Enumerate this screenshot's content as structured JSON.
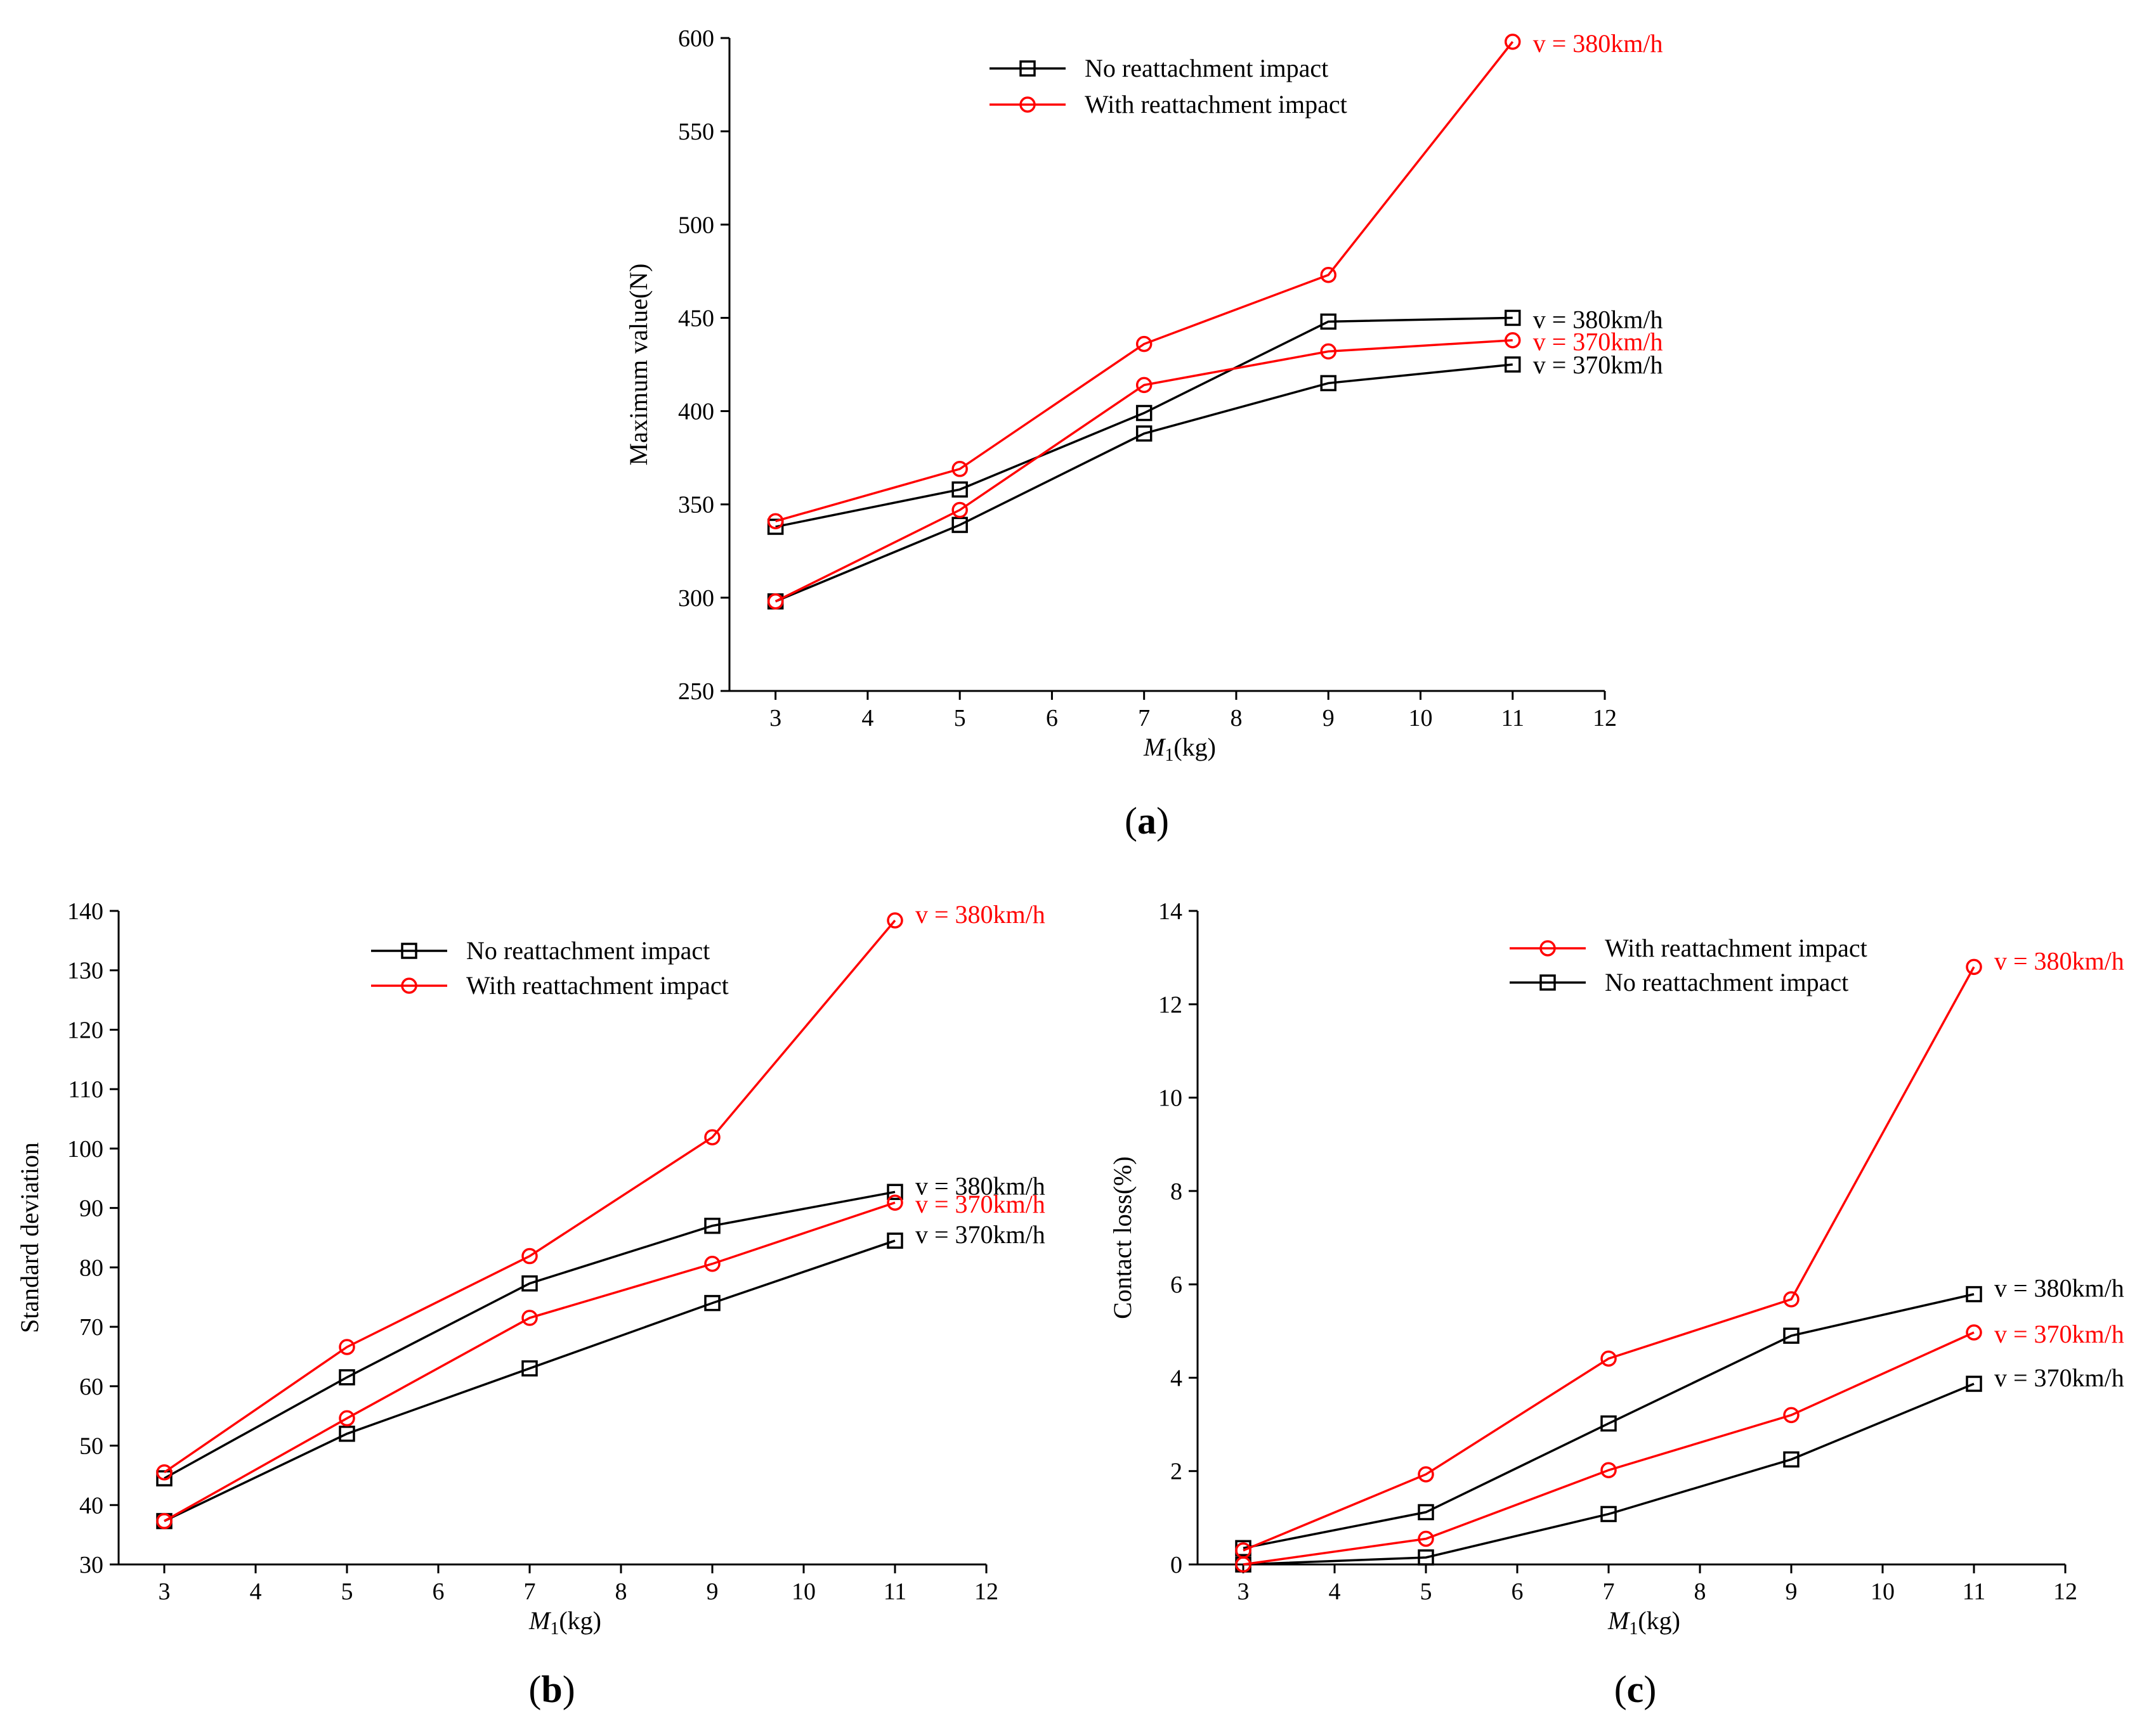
{
  "colors": {
    "black": "#000000",
    "red": "#ff0000"
  },
  "chart_data": [
    {
      "id": "a",
      "type": "line",
      "caption_letter": "a",
      "xlabel_main": "M",
      "xlabel_sub": "1",
      "xlabel_unit": "(kg)",
      "ylabel": "Maximum value(N)",
      "xlim": [
        2.5,
        12
      ],
      "ylim": [
        250,
        600
      ],
      "xticks": [
        3,
        4,
        5,
        6,
        7,
        8,
        9,
        10,
        11,
        12
      ],
      "yticks": [
        250,
        300,
        350,
        400,
        450,
        500,
        550,
        600
      ],
      "x": [
        3,
        5,
        7,
        9,
        11
      ],
      "legend": [
        {
          "label": "No reattachment impact",
          "marker": "square",
          "color": "#000000"
        },
        {
          "label": "With reattachment impact",
          "marker": "circle",
          "color": "#ff0000"
        }
      ],
      "series": [
        {
          "name": "No reattachment impact, v = 380km/h",
          "marker": "square",
          "color": "#000000",
          "values": [
            338,
            358,
            399,
            448,
            450
          ],
          "end_label": "v = 380km/h"
        },
        {
          "name": "No reattachment impact, v = 370km/h",
          "marker": "square",
          "color": "#000000",
          "values": [
            298,
            339,
            388,
            415,
            425
          ],
          "end_label": "v = 370km/h"
        },
        {
          "name": "With reattachment impact, v = 380km/h",
          "marker": "circle",
          "color": "#ff0000",
          "values": [
            341,
            369,
            436,
            473,
            598
          ],
          "end_label": "v = 380km/h"
        },
        {
          "name": "With reattachment impact, v = 370km/h",
          "marker": "circle",
          "color": "#ff0000",
          "values": [
            298,
            347,
            414,
            432,
            438
          ],
          "end_label": "v = 370km/h"
        }
      ]
    },
    {
      "id": "b",
      "type": "line",
      "caption_letter": "b",
      "xlabel_main": "M",
      "xlabel_sub": "1",
      "xlabel_unit": "(kg)",
      "ylabel": "Standard deviation",
      "xlim": [
        2.5,
        12
      ],
      "ylim": [
        30,
        140
      ],
      "xticks": [
        3,
        4,
        5,
        6,
        7,
        8,
        9,
        10,
        11,
        12
      ],
      "yticks": [
        30,
        40,
        50,
        60,
        70,
        80,
        90,
        100,
        110,
        120,
        130,
        140
      ],
      "x": [
        3,
        5,
        7,
        9,
        11
      ],
      "legend": [
        {
          "label": "No reattachment impact",
          "marker": "square",
          "color": "#000000"
        },
        {
          "label": "With reattachment impact",
          "marker": "circle",
          "color": "#ff0000"
        }
      ],
      "series": [
        {
          "name": "No reattachment impact, v = 380km/h",
          "marker": "square",
          "color": "#000000",
          "values": [
            44.5,
            61.5,
            77.3,
            87,
            92.7
          ],
          "end_label": "v = 380km/h"
        },
        {
          "name": "No reattachment impact, v = 370km/h",
          "marker": "square",
          "color": "#000000",
          "values": [
            37.3,
            52,
            63,
            74,
            84.5
          ],
          "end_label": "v = 370km/h"
        },
        {
          "name": "With reattachment impact, v = 380km/h",
          "marker": "circle",
          "color": "#ff0000",
          "values": [
            45.5,
            66.6,
            81.9,
            101.9,
            138.4
          ],
          "end_label": "v = 380km/h"
        },
        {
          "name": "With reattachment impact, v = 370km/h",
          "marker": "circle",
          "color": "#ff0000",
          "values": [
            37.3,
            54.6,
            71.5,
            80.6,
            90.9
          ],
          "end_label": "v = 370km/h"
        }
      ]
    },
    {
      "id": "c",
      "type": "line",
      "caption_letter": "c",
      "xlabel_main": "M",
      "xlabel_sub": "1",
      "xlabel_unit": "(kg)",
      "ylabel": "Contact loss(%)",
      "xlim": [
        2.5,
        12
      ],
      "ylim": [
        0,
        14
      ],
      "xticks": [
        3,
        4,
        5,
        6,
        7,
        8,
        9,
        10,
        11,
        12
      ],
      "yticks": [
        0,
        2,
        4,
        6,
        8,
        10,
        12,
        14
      ],
      "x": [
        3,
        5,
        7,
        9,
        11
      ],
      "legend": [
        {
          "label": "With reattachment impact",
          "marker": "circle",
          "color": "#ff0000"
        },
        {
          "label": "No reattachment impact",
          "marker": "square",
          "color": "#000000"
        }
      ],
      "series": [
        {
          "name": "No reattachment impact, v = 380km/h",
          "marker": "square",
          "color": "#000000",
          "values": [
            0.35,
            1.12,
            3.02,
            4.9,
            5.79
          ],
          "end_label": "v = 380km/h"
        },
        {
          "name": "No reattachment impact, v = 370km/h",
          "marker": "square",
          "color": "#000000",
          "values": [
            0,
            0.15,
            1.08,
            2.25,
            3.87
          ],
          "end_label": "v = 370km/h"
        },
        {
          "name": "With reattachment impact, v = 380km/h",
          "marker": "circle",
          "color": "#ff0000",
          "values": [
            0.3,
            1.93,
            4.41,
            5.68,
            12.8
          ],
          "end_label": "v = 380km/h"
        },
        {
          "name": "With reattachment impact, v = 370km/h",
          "marker": "circle",
          "color": "#ff0000",
          "values": [
            0,
            0.55,
            2.02,
            3.2,
            4.97
          ],
          "end_label": "v = 370km/h"
        }
      ]
    }
  ]
}
